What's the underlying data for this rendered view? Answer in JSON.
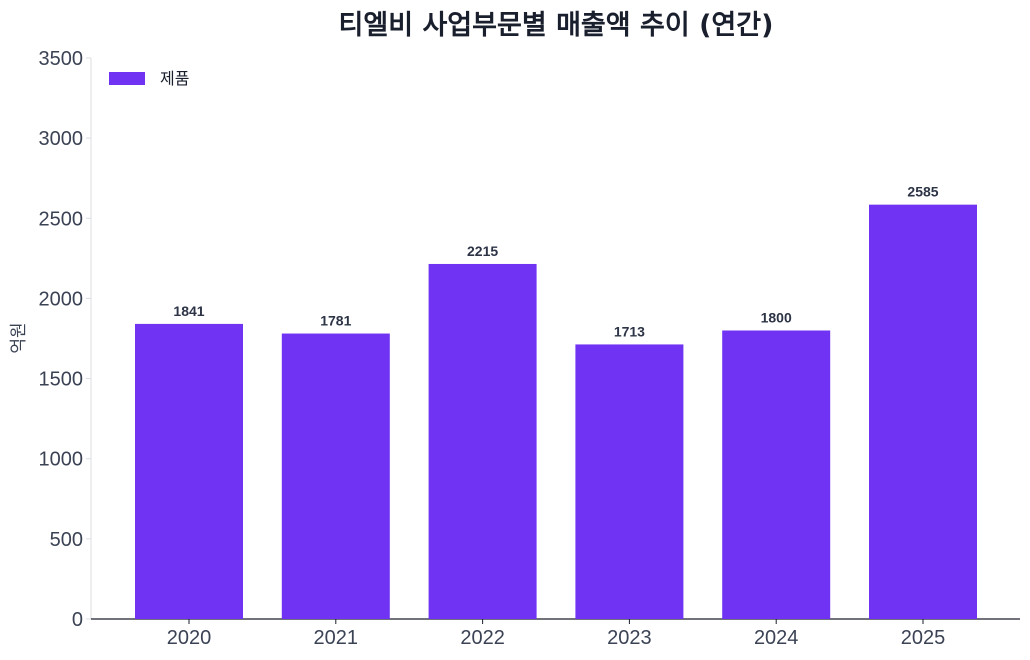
{
  "chart_data": {
    "type": "bar",
    "title": "티엘비 사업부문별 매출액 추이 (연간)",
    "xlabel": "",
    "ylabel": "억원",
    "categories": [
      "2020",
      "2021",
      "2022",
      "2023",
      "2024",
      "2025"
    ],
    "series": [
      {
        "name": "제품",
        "values": [
          1841,
          1781,
          2215,
          1713,
          1800,
          2585
        ],
        "color": "#7133f3"
      }
    ],
    "ylim": [
      0,
      3500
    ],
    "yticks": [
      "0",
      "500",
      "1000",
      "1500",
      "2000",
      "2500",
      "3000",
      "3500"
    ],
    "legend_position": "top-left",
    "grid": false
  }
}
